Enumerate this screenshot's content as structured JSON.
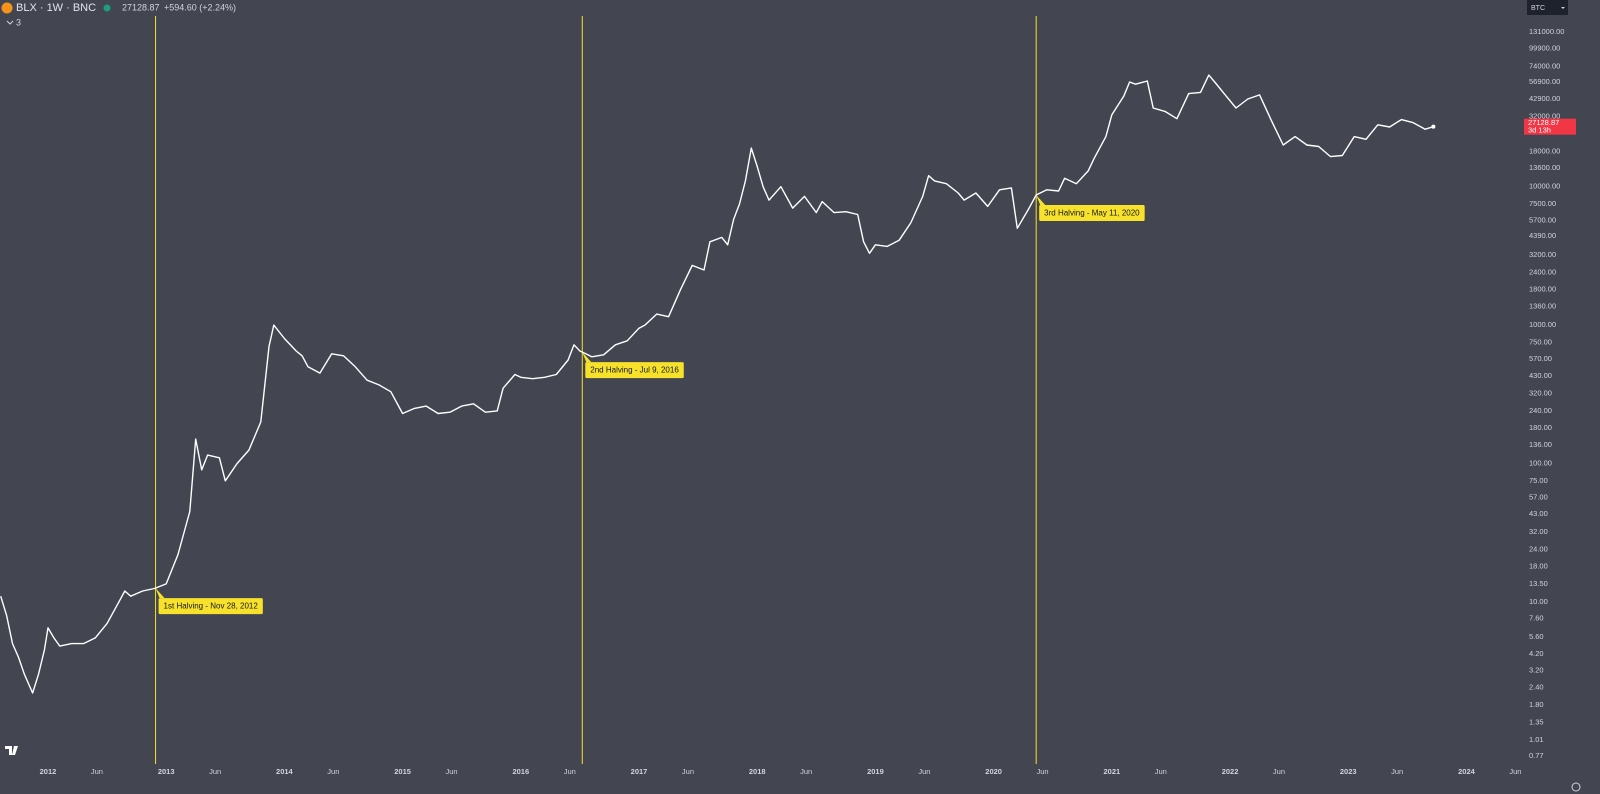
{
  "header": {
    "symbol": "BLX · 1W · BNC",
    "price": 27128.87,
    "change": "+594.60 (+2.24%)",
    "indicators": "3",
    "currency": "BTC",
    "countdown": "3d 13h"
  },
  "chart_data": {
    "type": "line",
    "yscale": "log",
    "color": "#ffffff",
    "annotation_color": "#f7e12b",
    "background": "#434651",
    "x": [
      2011.6,
      2011.65,
      2011.7,
      2011.75,
      2011.8,
      2011.87,
      2011.92,
      2011.97,
      2012.0,
      2012.05,
      2012.1,
      2012.2,
      2012.3,
      2012.4,
      2012.5,
      2012.6,
      2012.65,
      2012.7,
      2012.8,
      2012.9,
      2013.0,
      2013.1,
      2013.2,
      2013.25,
      2013.3,
      2013.35,
      2013.45,
      2013.5,
      2013.6,
      2013.7,
      2013.8,
      2013.87,
      2013.91,
      2014.0,
      2014.1,
      2014.15,
      2014.2,
      2014.3,
      2014.4,
      2014.5,
      2014.6,
      2014.7,
      2014.8,
      2014.9,
      2015.0,
      2015.1,
      2015.2,
      2015.3,
      2015.4,
      2015.5,
      2015.6,
      2015.7,
      2015.8,
      2015.85,
      2015.95,
      2016.0,
      2016.1,
      2016.2,
      2016.3,
      2016.4,
      2016.45,
      2016.5,
      2016.55,
      2016.6,
      2016.7,
      2016.8,
      2016.9,
      2017.0,
      2017.05,
      2017.15,
      2017.25,
      2017.35,
      2017.45,
      2017.55,
      2017.6,
      2017.7,
      2017.75,
      2017.8,
      2017.85,
      2017.9,
      2017.95,
      2018.0,
      2018.05,
      2018.1,
      2018.2,
      2018.3,
      2018.4,
      2018.5,
      2018.55,
      2018.65,
      2018.75,
      2018.85,
      2018.9,
      2018.95,
      2019.0,
      2019.1,
      2019.2,
      2019.3,
      2019.4,
      2019.45,
      2019.5,
      2019.6,
      2019.7,
      2019.75,
      2019.85,
      2019.95,
      2020.05,
      2020.15,
      2020.2,
      2020.3,
      2020.36,
      2020.45,
      2020.55,
      2020.6,
      2020.7,
      2020.8,
      2020.85,
      2020.95,
      2021.0,
      2021.1,
      2021.15,
      2021.2,
      2021.3,
      2021.35,
      2021.45,
      2021.55,
      2021.65,
      2021.75,
      2021.82,
      2021.87,
      2021.95,
      2022.05,
      2022.15,
      2022.25,
      2022.35,
      2022.45,
      2022.55,
      2022.65,
      2022.75,
      2022.85,
      2022.95,
      2023.05,
      2023.15,
      2023.25,
      2023.35,
      2023.45,
      2023.55,
      2023.65,
      2023.72
    ],
    "values": [
      11,
      8,
      5,
      4,
      3,
      2.2,
      3,
      4.5,
      6.5,
      5.5,
      4.8,
      5,
      5,
      5.5,
      7,
      10,
      12,
      11,
      12,
      12.5,
      13.5,
      22,
      45,
      150,
      90,
      115,
      110,
      75,
      100,
      125,
      200,
      700,
      1000,
      800,
      650,
      600,
      500,
      450,
      620,
      600,
      500,
      400,
      370,
      330,
      230,
      250,
      260,
      230,
      235,
      260,
      270,
      235,
      240,
      350,
      440,
      420,
      410,
      420,
      440,
      560,
      720,
      650,
      620,
      590,
      610,
      720,
      770,
      950,
      1000,
      1200,
      1150,
      1800,
      2700,
      2500,
      4000,
      4300,
      3800,
      5800,
      7500,
      11000,
      19000,
      14000,
      10000,
      8000,
      10000,
      7000,
      8500,
      6500,
      7800,
      6500,
      6600,
      6300,
      4000,
      3300,
      3800,
      3700,
      4100,
      5500,
      8500,
      12000,
      11000,
      10500,
      9000,
      8000,
      9000,
      7200,
      9500,
      9800,
      5000,
      7000,
      8700,
      9500,
      9300,
      11500,
      10500,
      13000,
      16000,
      23000,
      33000,
      45000,
      57000,
      55000,
      58000,
      37000,
      35000,
      31000,
      47000,
      48000,
      64000,
      57000,
      47000,
      37000,
      43000,
      46000,
      30000,
      20000,
      23000,
      20000,
      19500,
      16500,
      16800,
      23000,
      22000,
      28000,
      27000,
      30500,
      29000,
      26000,
      27128.87
    ],
    "annotations": [
      {
        "label": "1st Halving - Nov 28, 2012",
        "x": 2012.91
      },
      {
        "label": "2nd Halving - Jul 9, 2016",
        "x": 2016.52
      },
      {
        "label": "3rd Halving - May 11, 2020",
        "x": 2020.36
      }
    ],
    "xlim": [
      2011.594,
      2024.453
    ],
    "xticks": [
      2012,
      {
        "value": 2012.414,
        "label": "Jun"
      },
      2013,
      {
        "value": 2013.414,
        "label": "Jun"
      },
      2014,
      {
        "value": 2014.414,
        "label": "Jun"
      },
      2015,
      {
        "value": 2015.414,
        "label": "Jun"
      },
      2016,
      {
        "value": 2016.414,
        "label": "Jun"
      },
      2017,
      {
        "value": 2017.414,
        "label": "Jun"
      },
      2018,
      {
        "value": 2018.414,
        "label": "Jun"
      },
      2019,
      {
        "value": 2019.414,
        "label": "Jun"
      },
      2020,
      {
        "value": 2020.414,
        "label": "Jun"
      },
      2021,
      {
        "value": 2021.414,
        "label": "Jun"
      },
      2022,
      {
        "value": 2022.414,
        "label": "Jun"
      },
      2023,
      {
        "value": 2023.414,
        "label": "Jun"
      },
      2024,
      {
        "value": 2024.414,
        "label": "Jun"
      }
    ],
    "ylim": [
      0.675,
      171000
    ],
    "yticks": [
      {
        "value": 131000,
        "label": "131000.00"
      },
      {
        "value": 99900,
        "label": "99900.00"
      },
      {
        "value": 74000,
        "label": "74000.00"
      },
      {
        "value": 56900,
        "label": "56900.00"
      },
      {
        "value": 42900,
        "label": "42900.00"
      },
      {
        "value": 32000,
        "label": "32000.00"
      },
      {
        "value": 18000,
        "label": "18000.00"
      },
      {
        "value": 13600,
        "label": "13600.00"
      },
      {
        "value": 10000,
        "label": "10000.00"
      },
      {
        "value": 7500,
        "label": "7500.00"
      },
      {
        "value": 5700,
        "label": "5700.00"
      },
      {
        "value": 4390,
        "label": "4390.00"
      },
      {
        "value": 3200,
        "label": "3200.00"
      },
      {
        "value": 2400,
        "label": "2400.00"
      },
      {
        "value": 1800,
        "label": "1800.00"
      },
      {
        "value": 1360,
        "label": "1360.00"
      },
      {
        "value": 1000,
        "label": "1000.00"
      },
      {
        "value": 750,
        "label": "750.00"
      },
      {
        "value": 570,
        "label": "570.00"
      },
      {
        "value": 430,
        "label": "430.00"
      },
      {
        "value": 320,
        "label": "320.00"
      },
      {
        "value": 240,
        "label": "240.00"
      },
      {
        "value": 180,
        "label": "180.00"
      },
      {
        "value": 136,
        "label": "136.00"
      },
      {
        "value": 100,
        "label": "100.00"
      },
      {
        "value": 75,
        "label": "75.00"
      },
      {
        "value": 57,
        "label": "57.00"
      },
      {
        "value": 43,
        "label": "43.00"
      },
      {
        "value": 32,
        "label": "32.00"
      },
      {
        "value": 24,
        "label": "24.00"
      },
      {
        "value": 18,
        "label": "18.00"
      },
      {
        "value": 13.5,
        "label": "13.50"
      },
      {
        "value": 10,
        "label": "10.00"
      },
      {
        "value": 7.6,
        "label": "7.60"
      },
      {
        "value": 5.6,
        "label": "5.60"
      },
      {
        "value": 4.2,
        "label": "4.20"
      },
      {
        "value": 3.2,
        "label": "3.20"
      },
      {
        "value": 2.4,
        "label": "2.40"
      },
      {
        "value": 1.8,
        "label": "1.80"
      },
      {
        "value": 1.35,
        "label": "1.35"
      },
      {
        "value": 1.01,
        "label": "1.01"
      },
      {
        "value": 0.77,
        "label": "0.77"
      }
    ]
  }
}
